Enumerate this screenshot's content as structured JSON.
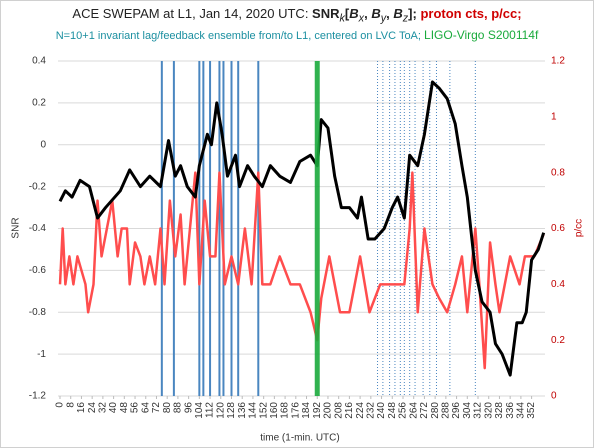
{
  "chart_data": {
    "type": "line",
    "title": [
      "ACE SWEPAM at L1, Jan 14, 2020 UTC: ",
      "SNR",
      "k",
      "[",
      "B",
      "x",
      ", ",
      "B",
      "y",
      ", ",
      "B",
      "z",
      "]; ",
      "proton cts, p/cc",
      ";"
    ],
    "subtitle": [
      "N=10+1 invariant lag/feedback ensemble from/to L1, centered on LVC ToA; ",
      "LIGO-Virgo S200114f"
    ],
    "x_label": "time (1-min. UTC)",
    "y_label": "SNR",
    "y2_label": "p/cc",
    "xlim": [
      -1.5,
      362
    ],
    "xticks": [
      0,
      8,
      16,
      24,
      32,
      40,
      48,
      56,
      64,
      72,
      80,
      88,
      96,
      104,
      112,
      120,
      128,
      136,
      144,
      152,
      160,
      168,
      176,
      184,
      192,
      200,
      208,
      216,
      224,
      232,
      240,
      248,
      256,
      264,
      272,
      280,
      288,
      296,
      304,
      312,
      320,
      328,
      336,
      344,
      352
    ],
    "ylim": [
      -1.2,
      0.4
    ],
    "yticks": [
      0.4,
      0.2,
      0,
      -0.2,
      -0.4,
      -0.6,
      -0.8,
      -1,
      -1.2
    ],
    "y2lim": [
      0,
      1.2
    ],
    "y2ticks": [
      1.2,
      1,
      0.8,
      0.6,
      0.4,
      0.2,
      0
    ],
    "grid": true,
    "y2_color": "#c00000",
    "vlines": [
      {
        "color": "#4a86c0",
        "width": 2,
        "dash": "none",
        "x": [
          76,
          85,
          104,
          107,
          112,
          119,
          122,
          128,
          133,
          148
        ]
      },
      {
        "color": "#4a86c0",
        "width": 1,
        "dash": "1 2",
        "x": [
          237,
          241,
          246,
          250,
          254,
          257,
          261,
          265,
          271,
          276,
          281,
          291,
          310
        ]
      }
    ],
    "highlight": {
      "color": "#1aaa3c",
      "width": 5,
      "x": 192
    },
    "series": [
      {
        "color": "#ff4d4d",
        "axis": "y2",
        "x": [
          0,
          2,
          4,
          7,
          10,
          13,
          19,
          21,
          25,
          28,
          31,
          35,
          39,
          43,
          46,
          50,
          52,
          56,
          60,
          63,
          67,
          71,
          75,
          78,
          82,
          86,
          90,
          93,
          97,
          101,
          104,
          108,
          112,
          116,
          119,
          123,
          128,
          133,
          138,
          143,
          148,
          151,
          157,
          164,
          172,
          179,
          187,
          192,
          195,
          201,
          209,
          216,
          224,
          231,
          239,
          250,
          257,
          261,
          263,
          267,
          272,
          278,
          283,
          289,
          295,
          300,
          304,
          310,
          313,
          317,
          321,
          325,
          328,
          336,
          343,
          347,
          354,
          361
        ],
        "values": [
          0.4,
          0.6,
          0.4,
          0.5,
          0.4,
          0.5,
          0.4,
          0.3,
          0.4,
          0.7,
          0.5,
          0.6,
          0.7,
          0.5,
          0.6,
          0.6,
          0.4,
          0.55,
          0.5,
          0.4,
          0.5,
          0.4,
          0.6,
          0.4,
          0.7,
          0.5,
          0.65,
          0.4,
          0.6,
          0.8,
          0.4,
          0.7,
          0.5,
          0.5,
          0.8,
          0.4,
          0.5,
          0.4,
          0.6,
          0.4,
          0.8,
          0.4,
          0.4,
          0.5,
          0.4,
          0.4,
          0.3,
          0.2,
          0.35,
          0.5,
          0.3,
          0.3,
          0.5,
          0.3,
          0.4,
          0.4,
          0.4,
          0.6,
          0.8,
          0.3,
          0.6,
          0.4,
          0.35,
          0.3,
          0.4,
          0.5,
          0.3,
          0.6,
          0.4,
          0.1,
          0.55,
          0.4,
          0.3,
          0.5,
          0.4,
          0.5,
          0.5,
          0.58
        ]
      },
      {
        "color": "#000000",
        "x": [
          0,
          4,
          9,
          15,
          22,
          28,
          34,
          45,
          52,
          60,
          67,
          75,
          81,
          86,
          90,
          95,
          101,
          104,
          110,
          113,
          117,
          121,
          125,
          131,
          134,
          140,
          145,
          151,
          157,
          164,
          172,
          179,
          187,
          192,
          195,
          200,
          205,
          210,
          216,
          222,
          225,
          230,
          235,
          242,
          248,
          252,
          257,
          261,
          267,
          272,
          278,
          283,
          289,
          295,
          300,
          304,
          310,
          315,
          321,
          325,
          330,
          336,
          341,
          345,
          348,
          352,
          357,
          361
        ],
        "values": [
          -0.27,
          -0.22,
          -0.25,
          -0.17,
          -0.2,
          -0.35,
          -0.3,
          -0.22,
          -0.12,
          -0.2,
          -0.15,
          -0.2,
          0.02,
          -0.15,
          -0.1,
          -0.2,
          -0.25,
          -0.1,
          0.05,
          0,
          0.2,
          0.05,
          -0.15,
          -0.05,
          -0.2,
          -0.1,
          -0.15,
          -0.2,
          -0.1,
          -0.15,
          -0.18,
          -0.08,
          -0.05,
          -0.1,
          0.12,
          0.08,
          -0.15,
          -0.3,
          -0.3,
          -0.35,
          -0.25,
          -0.45,
          -0.45,
          -0.4,
          -0.3,
          -0.25,
          -0.35,
          -0.05,
          -0.1,
          0.05,
          0.3,
          0.27,
          0.22,
          0.1,
          -0.1,
          -0.25,
          -0.6,
          -0.75,
          -0.8,
          -0.95,
          -1,
          -1.1,
          -0.85,
          -0.85,
          -0.8,
          -0.55,
          -0.5,
          -0.42
        ]
      }
    ]
  }
}
